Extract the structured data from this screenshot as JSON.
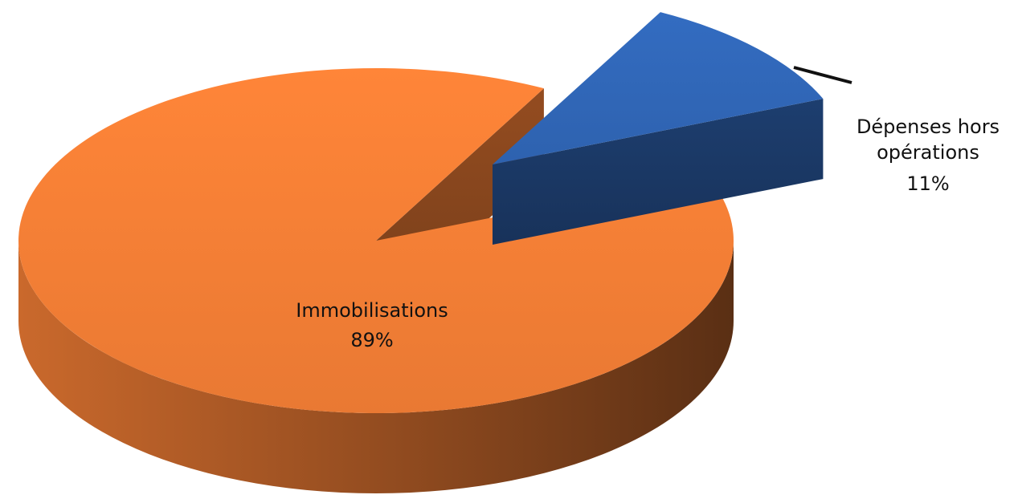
{
  "chart_data": {
    "type": "pie",
    "style": "3d-exploded",
    "slices": [
      {
        "label_line1": "Dépenses hors",
        "label_line2": "opérations",
        "value_text": "11%",
        "value": 11,
        "color": "#2f64b3",
        "exploded": true
      },
      {
        "label_line1": "Immobilisations",
        "label_line2": "",
        "value_text": "89%",
        "value": 89,
        "color": "#ee7b34",
        "exploded": false
      }
    ]
  }
}
